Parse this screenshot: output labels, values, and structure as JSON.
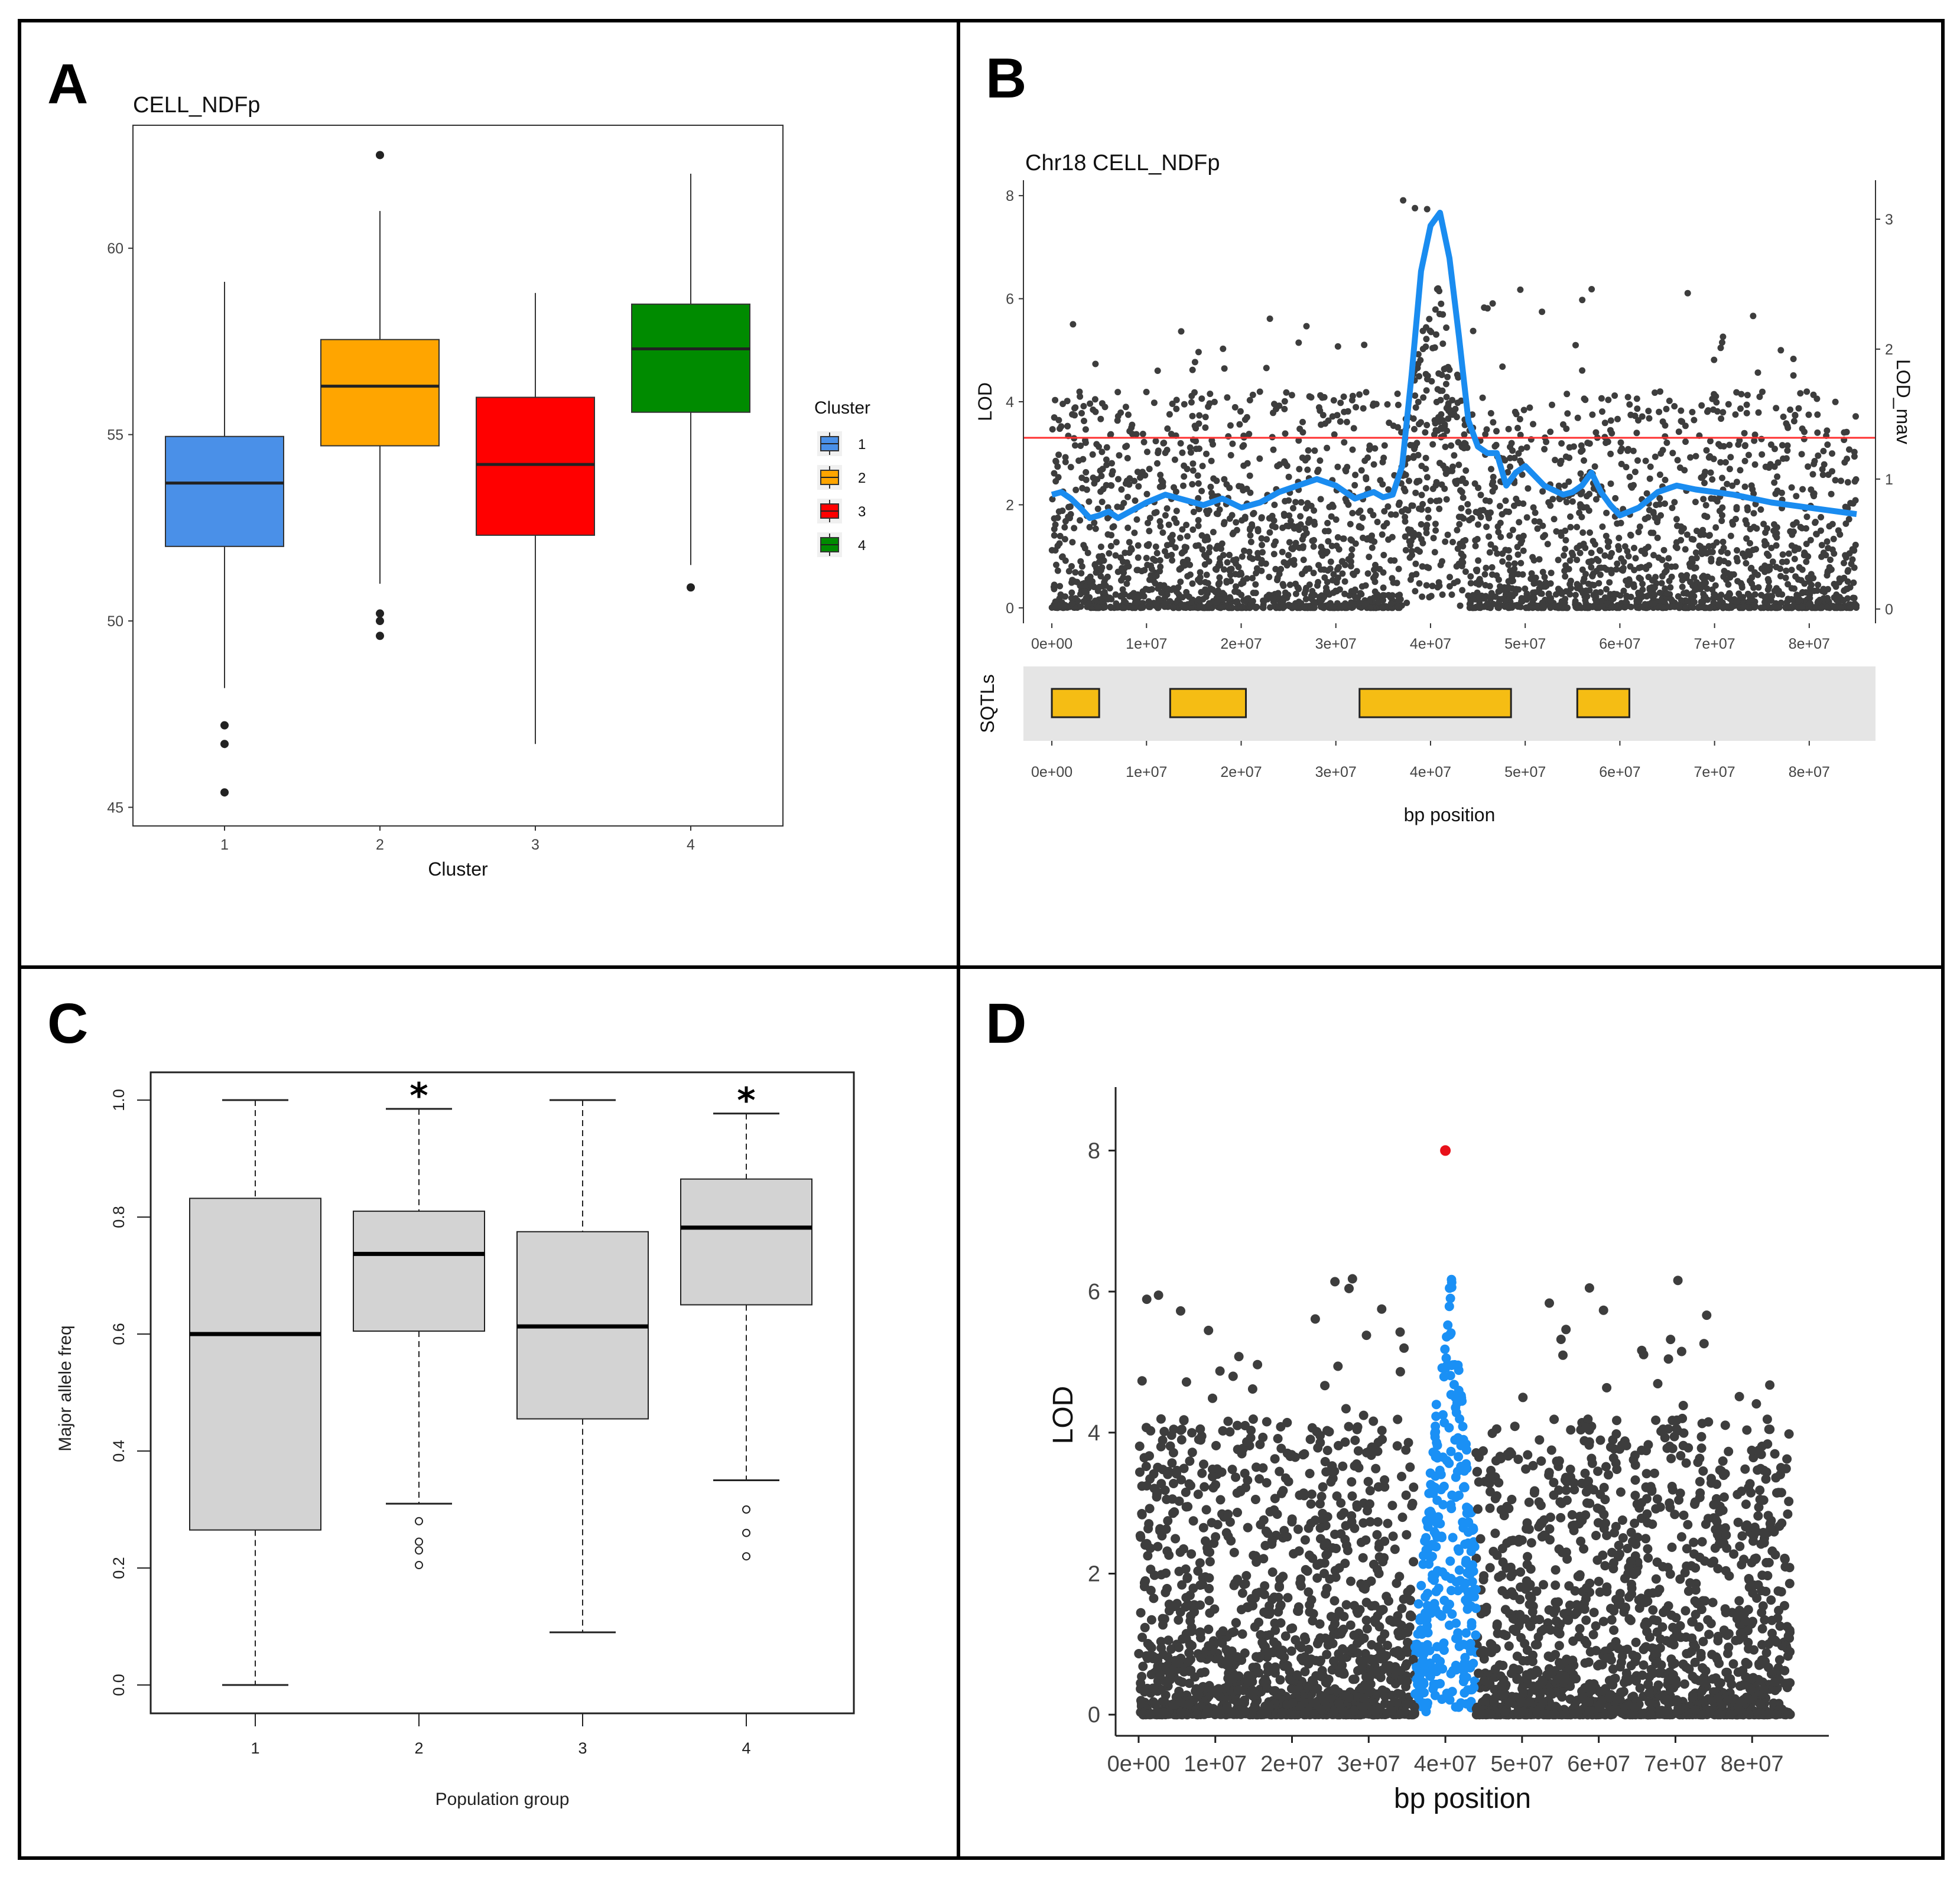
{
  "panels": {
    "A": "A",
    "B": "B",
    "C": "C",
    "D": "D"
  },
  "chart_data": [
    {
      "panel": "A",
      "type": "boxplot",
      "title": "CELL_NDFp",
      "xlabel": "Cluster",
      "ylabel": "",
      "ylim": [
        44.5,
        63.3
      ],
      "yticks": [
        45,
        50,
        55,
        60
      ],
      "categories": [
        "1",
        "2",
        "3",
        "4"
      ],
      "colors": [
        "#4a90e8",
        "#ffa500",
        "#ff0000",
        "#008b00"
      ],
      "boxes": [
        {
          "q1": 52.0,
          "median": 53.7,
          "q3": 54.95,
          "low": 48.2,
          "high": 59.1,
          "outliers": [
            47.2,
            46.7,
            45.4
          ]
        },
        {
          "q1": 54.7,
          "median": 56.3,
          "q3": 57.55,
          "low": 51.0,
          "high": 61.0,
          "outliers": [
            62.5,
            50.2,
            50.0,
            49.6
          ]
        },
        {
          "q1": 52.3,
          "median": 54.2,
          "q3": 56.0,
          "low": 46.7,
          "high": 58.8,
          "outliers": []
        },
        {
          "q1": 55.6,
          "median": 57.3,
          "q3": 58.5,
          "low": 51.5,
          "high": 62.0,
          "outliers": [
            50.9
          ]
        }
      ],
      "legend": {
        "title": "Cluster",
        "entries": [
          "1",
          "2",
          "3",
          "4"
        ],
        "position": "right"
      }
    },
    {
      "panel": "B",
      "type": "scatter",
      "title": "Chr18 CELL_NDFp",
      "xlabel": "bp position",
      "ylabel": "LOD",
      "y2label": "LOD_mav",
      "xlim": [
        -3000000,
        87000000
      ],
      "ylim": [
        -0.3,
        8.3
      ],
      "y2lim": [
        -0.11,
        3.3
      ],
      "xticks": [
        "0e+00",
        "1e+07",
        "2e+07",
        "3e+07",
        "4e+07",
        "5e+07",
        "6e+07",
        "7e+07",
        "8e+07"
      ],
      "yticks": [
        0,
        2,
        4,
        6,
        8
      ],
      "y2ticks": [
        0,
        1,
        2,
        3
      ],
      "threshold": 3.3,
      "moving_average": {
        "x": [
          0,
          1000000,
          2000000,
          3000000,
          4000000,
          5000000,
          6000000,
          7000000,
          8000000,
          9000000,
          10000000,
          12000000,
          14000000,
          16000000,
          18000000,
          20000000,
          22000000,
          24000000,
          26000000,
          28000000,
          30000000,
          32000000,
          34000000,
          35000000,
          36000000,
          37000000,
          38000000,
          39000000,
          40000000,
          41000000,
          42000000,
          43000000,
          44000000,
          45000000,
          46000000,
          47000000,
          48000000,
          49000000,
          50000000,
          52000000,
          54000000,
          55000000,
          56000000,
          57000000,
          58000000,
          59000000,
          60000000,
          62000000,
          64000000,
          66000000,
          68000000,
          70000000,
          72000000,
          74000000,
          76000000,
          78000000,
          80000000,
          82000000,
          84000000,
          85000000
        ],
        "y": [
          0.88,
          0.9,
          0.85,
          0.78,
          0.7,
          0.72,
          0.75,
          0.7,
          0.74,
          0.78,
          0.82,
          0.88,
          0.84,
          0.8,
          0.85,
          0.78,
          0.82,
          0.9,
          0.95,
          1.0,
          0.95,
          0.85,
          0.9,
          0.86,
          0.88,
          1.1,
          1.8,
          2.6,
          2.95,
          3.05,
          2.7,
          2.1,
          1.45,
          1.25,
          1.2,
          1.2,
          0.95,
          1.05,
          1.1,
          0.95,
          0.88,
          0.9,
          0.95,
          1.05,
          0.9,
          0.8,
          0.72,
          0.78,
          0.9,
          0.95,
          0.92,
          0.9,
          0.88,
          0.85,
          0.82,
          0.8,
          0.78,
          0.76,
          0.74,
          0.73
        ]
      },
      "snp_count": 3200
    },
    {
      "panel": "B",
      "type": "segments",
      "ylabel": "SQTLs",
      "xlim": [
        -3000000,
        87000000
      ],
      "xticks": [
        "0e+00",
        "1e+07",
        "2e+07",
        "3e+07",
        "4e+07",
        "5e+07",
        "6e+07",
        "7e+07",
        "8e+07"
      ],
      "regions": [
        {
          "start": 0,
          "end": 5000000
        },
        {
          "start": 12500000,
          "end": 20500000
        },
        {
          "start": 32500000,
          "end": 48500000
        },
        {
          "start": 55500000,
          "end": 61000000
        }
      ]
    },
    {
      "panel": "C",
      "type": "boxplot",
      "xlabel": "Population group",
      "ylabel": "Major allele freq",
      "ylim": [
        -0.05,
        1.05
      ],
      "yticks": [
        "0.0",
        "0.2",
        "0.4",
        "0.6",
        "0.8",
        "1.0"
      ],
      "categories": [
        "1",
        "2",
        "3",
        "4"
      ],
      "significance": [
        "",
        "*",
        "",
        "*"
      ],
      "boxes": [
        {
          "q1": 0.265,
          "median": 0.6,
          "q3": 0.832,
          "low": 0.0,
          "high": 1.0,
          "outliers": []
        },
        {
          "q1": 0.605,
          "median": 0.737,
          "q3": 0.81,
          "low": 0.31,
          "high": 0.985,
          "outliers": [
            0.28,
            0.245,
            0.23,
            0.205
          ]
        },
        {
          "q1": 0.455,
          "median": 0.613,
          "q3": 0.775,
          "low": 0.09,
          "high": 1.0,
          "outliers": []
        },
        {
          "q1": 0.65,
          "median": 0.782,
          "q3": 0.865,
          "low": 0.35,
          "high": 0.977,
          "outliers": [
            0.3,
            0.26,
            0.22
          ]
        }
      ]
    },
    {
      "panel": "D",
      "type": "scatter",
      "xlabel": "bp position",
      "ylabel": "LOD",
      "xlim": [
        -3000000,
        90000000
      ],
      "ylim": [
        -0.3,
        8.9
      ],
      "xticks": [
        "0e+00",
        "1e+07",
        "2e+07",
        "3e+07",
        "4e+07",
        "5e+07",
        "6e+07",
        "7e+07",
        "8e+07"
      ],
      "yticks": [
        0,
        2,
        4,
        6,
        8
      ],
      "highlight_region": [
        36000000,
        44000000
      ],
      "top_snp": {
        "x": 40000000,
        "y": 8.0
      },
      "snp_count": 3200
    }
  ]
}
